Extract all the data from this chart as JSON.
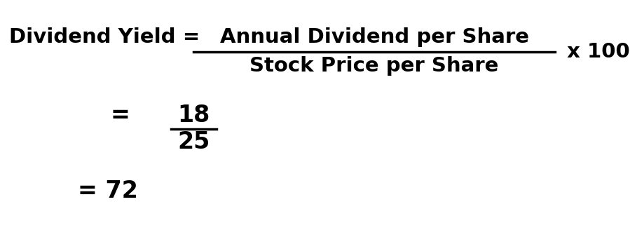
{
  "bg_color": "#ffffff",
  "text_color": "#000000",
  "figsize": [
    8.99,
    3.48
  ],
  "dpi": 100,
  "formula_left": "Dividend Yield = ",
  "formula_numerator": "Annual Dividend per Share",
  "formula_denominator": "Stock Price per Share",
  "formula_x100": " x 100",
  "eq_sign": "= ",
  "numerator_val": "18",
  "denominator_val": "25",
  "result_label": "= 72",
  "font_size_main": 21,
  "font_size_example": 24
}
